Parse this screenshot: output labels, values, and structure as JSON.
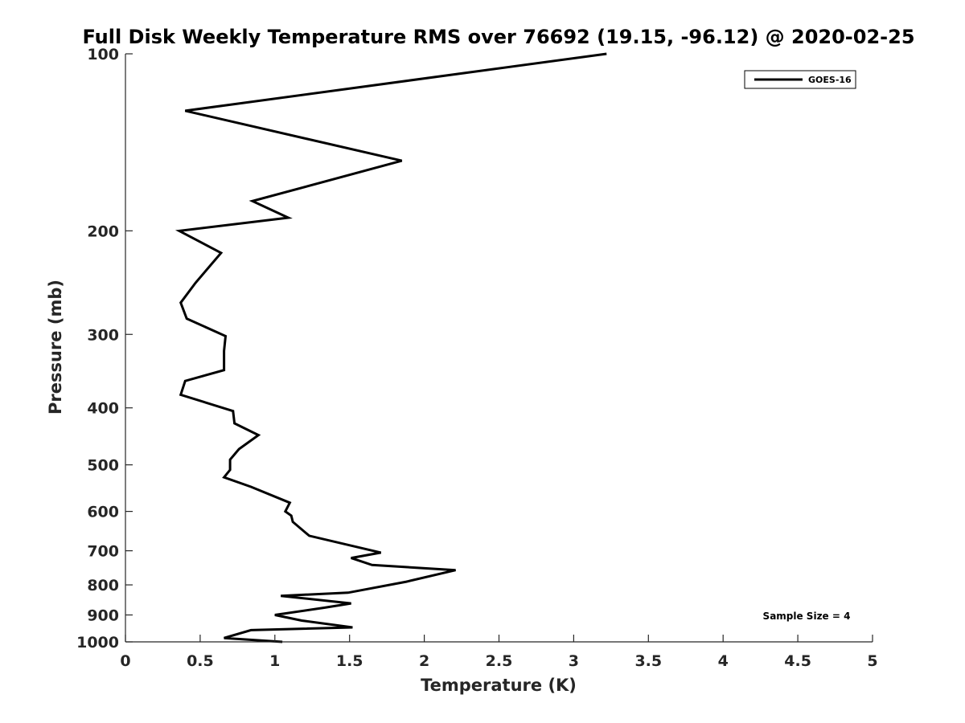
{
  "chart_data": {
    "type": "line",
    "title": "Full Disk Weekly Temperature RMS over 76692 (19.15, -96.12) @ 2020-02-25",
    "xlabel": "Temperature (K)",
    "ylabel": "Pressure (mb)",
    "xlim": [
      0,
      5
    ],
    "ylim": [
      100,
      1000
    ],
    "y_scale": "log",
    "y_direction": "reversed",
    "x_ticks": [
      "0",
      "0.5",
      "1",
      "1.5",
      "2",
      "2.5",
      "3",
      "3.5",
      "4",
      "4.5",
      "5"
    ],
    "y_ticks": [
      "100",
      "200",
      "300",
      "400",
      "500",
      "600",
      "700",
      "800",
      "900",
      "1000"
    ],
    "grid": false,
    "legend_position": "top-right",
    "annotation": "Sample Size = 4",
    "series": [
      {
        "name": "GOES-16",
        "color": "#000000",
        "points": [
          [
            3.22,
            100
          ],
          [
            0.4,
            125
          ],
          [
            1.85,
            152
          ],
          [
            0.85,
            178
          ],
          [
            1.09,
            190
          ],
          [
            0.36,
            200
          ],
          [
            0.64,
            218
          ],
          [
            0.47,
            245
          ],
          [
            0.37,
            265
          ],
          [
            0.41,
            282
          ],
          [
            0.67,
            302
          ],
          [
            0.66,
            320
          ],
          [
            0.66,
            345
          ],
          [
            0.4,
            360
          ],
          [
            0.37,
            380
          ],
          [
            0.72,
            405
          ],
          [
            0.73,
            425
          ],
          [
            0.89,
            445
          ],
          [
            0.76,
            470
          ],
          [
            0.7,
            490
          ],
          [
            0.7,
            510
          ],
          [
            0.66,
            525
          ],
          [
            0.84,
            545
          ],
          [
            1.1,
            580
          ],
          [
            1.07,
            600
          ],
          [
            1.11,
            610
          ],
          [
            1.12,
            625
          ],
          [
            1.23,
            660
          ],
          [
            1.71,
            705
          ],
          [
            1.51,
            720
          ],
          [
            1.65,
            740
          ],
          [
            2.21,
            755
          ],
          [
            1.88,
            790
          ],
          [
            1.49,
            825
          ],
          [
            1.04,
            835
          ],
          [
            1.51,
            860
          ],
          [
            1.33,
            875
          ],
          [
            1.0,
            900
          ],
          [
            1.18,
            920
          ],
          [
            1.52,
            945
          ],
          [
            0.84,
            955
          ],
          [
            0.66,
            985
          ],
          [
            1.05,
            1000
          ]
        ]
      }
    ]
  }
}
